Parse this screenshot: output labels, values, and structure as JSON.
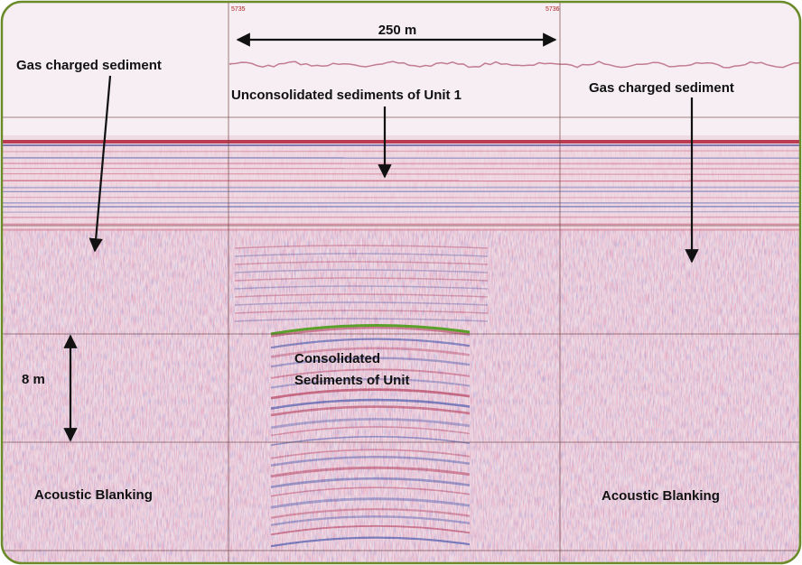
{
  "traces": [
    "5735",
    "5736"
  ],
  "scale": {
    "horizontal": "250 m",
    "vertical": "8 m"
  },
  "labels": {
    "gas_left": "Gas charged sediment",
    "gas_right": "Gas charged sediment",
    "unit1": "Unconsolidated sediments of Unit 1",
    "consolidated": [
      "Consolidated",
      "Sediments of Unit"
    ],
    "blank_left": "Acoustic Blanking",
    "blank_right": "Acoustic Blanking"
  }
}
